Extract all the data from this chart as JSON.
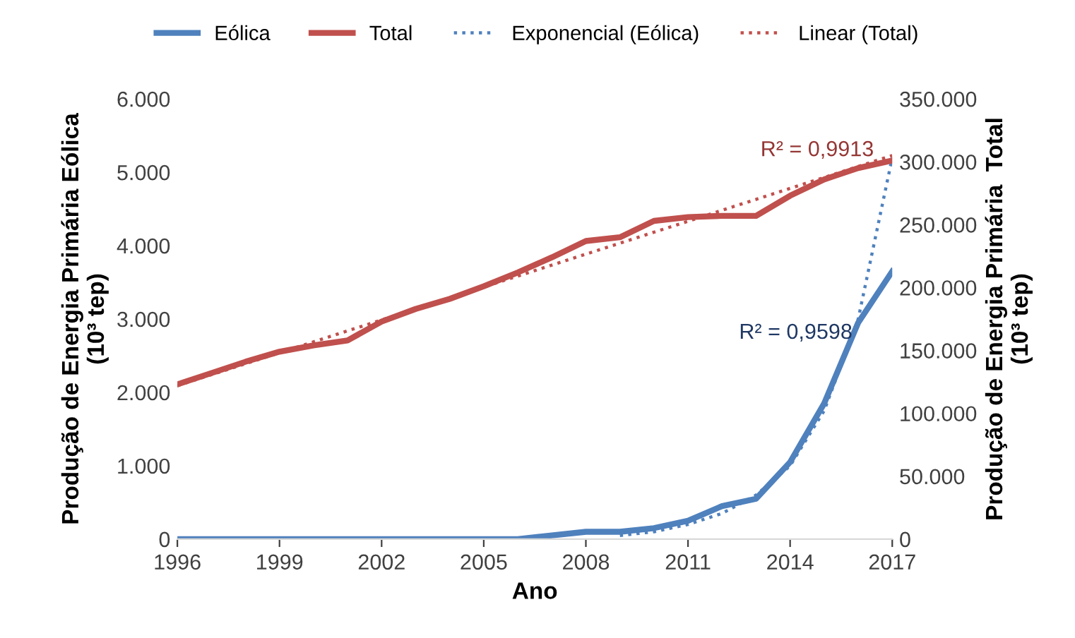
{
  "chart_data": {
    "type": "line",
    "xlabel": "Ano",
    "ylabel": "Produção de Energia Primária Eólica\n(10³ tep)",
    "y2label": "Produção de Energia Primária  Total\n(10³ tep)",
    "xlim": [
      1996,
      2017
    ],
    "xticks": [
      1996,
      1999,
      2002,
      2005,
      2008,
      2011,
      2014,
      2017
    ],
    "ylim": [
      0,
      6000
    ],
    "yticks": [
      {
        "value": 0,
        "label": "0"
      },
      {
        "value": 1000,
        "label": "1.000"
      },
      {
        "value": 2000,
        "label": "2.000"
      },
      {
        "value": 3000,
        "label": "3.000"
      },
      {
        "value": 4000,
        "label": "4.000"
      },
      {
        "value": 5000,
        "label": "5.000"
      },
      {
        "value": 6000,
        "label": "6.000"
      }
    ],
    "y2lim": [
      0,
      350000
    ],
    "y2ticks": [
      {
        "value": 0,
        "label": "0"
      },
      {
        "value": 50000,
        "label": "50.000"
      },
      {
        "value": 100000,
        "label": "100.000"
      },
      {
        "value": 150000,
        "label": "150.000"
      },
      {
        "value": 200000,
        "label": "200.000"
      },
      {
        "value": 250000,
        "label": "250.000"
      },
      {
        "value": 300000,
        "label": "300.000"
      },
      {
        "value": 350000,
        "label": "350.000"
      }
    ],
    "grid": false,
    "legend": "top",
    "series": [
      {
        "name": "Eólica",
        "color": "#4f81bd",
        "axis": "y",
        "line_style": "solid",
        "x": [
          1996,
          1997,
          1998,
          1999,
          2000,
          2001,
          2002,
          2003,
          2004,
          2005,
          2006,
          2007,
          2008,
          2009,
          2010,
          2011,
          2012,
          2013,
          2014,
          2015,
          2016,
          2017
        ],
        "values": [
          0,
          0,
          0,
          0,
          0,
          0,
          0,
          0,
          0,
          0,
          0,
          50,
          100,
          100,
          150,
          250,
          450,
          550,
          1050,
          1850,
          2950,
          3650
        ]
      },
      {
        "name": "Total",
        "color": "#c0504d",
        "axis": "y2",
        "line_style": "solid",
        "x": [
          1996,
          1997,
          1998,
          1999,
          2000,
          2001,
          2002,
          2003,
          2004,
          2005,
          2006,
          2007,
          2008,
          2009,
          2010,
          2011,
          2012,
          2013,
          2014,
          2015,
          2016,
          2017
        ],
        "values": [
          123000,
          132000,
          141000,
          149000,
          154000,
          158000,
          173000,
          183000,
          191000,
          201000,
          212000,
          224000,
          237000,
          240000,
          253000,
          256000,
          257000,
          257000,
          273000,
          286000,
          295000,
          301000
        ]
      },
      {
        "name": "Exponencial (Eólica)",
        "color": "#4f81bd",
        "axis": "y",
        "line_style": "dotted",
        "x": [
          2009,
          2010,
          2011,
          2012,
          2013,
          2014,
          2015,
          2016,
          2017
        ],
        "values": [
          50,
          100,
          200,
          350,
          600,
          1000,
          1750,
          3000,
          5200
        ]
      },
      {
        "name": "Linear (Total)",
        "color": "#c0504d",
        "axis": "y2",
        "line_style": "dotted",
        "x": [
          1996,
          2017
        ],
        "values": [
          122000,
          305000
        ]
      }
    ],
    "annotations": [
      "R² = 0,9913",
      "R² = 0,9598"
    ]
  }
}
